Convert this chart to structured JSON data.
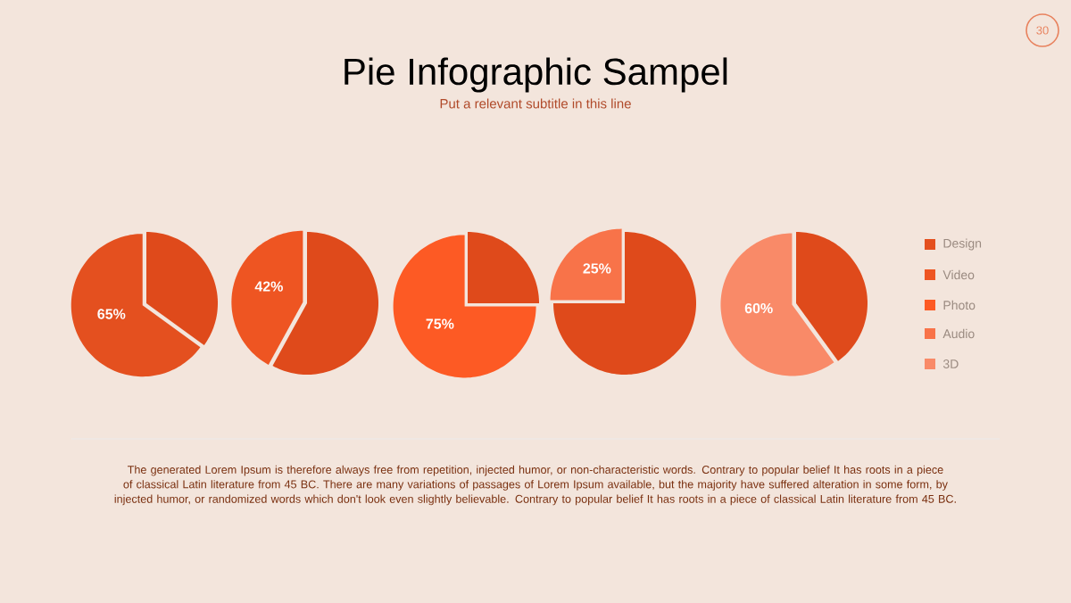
{
  "chart_data": [
    {
      "type": "pie",
      "categories": [
        "Design",
        null
      ],
      "values": [
        65,
        35
      ],
      "colors": [
        "#e4501f",
        "#df4a1b"
      ],
      "value_labels": [
        "65%",
        null
      ],
      "legend": "right"
    },
    {
      "type": "pie",
      "categories": [
        "Video",
        null
      ],
      "values": [
        42,
        58
      ],
      "colors": [
        "#ee5522",
        "#df4a1b"
      ],
      "value_labels": [
        "42%",
        null
      ],
      "legend": "right"
    },
    {
      "type": "pie",
      "title": "Pie Infographic Sampel",
      "subtitle": "Put a relevant subtitle in this line",
      "annotations": [
        "The generated Lorem Ipsum is therefore always free from repetition, injected humor, or non-characteristic words. Contrary to popular belief It has roots in a piece of classical Latin literature from 45 BC. There are many variations of passages of Lorem Ipsum available, but the majority have suffered alteration in some form, by injected humor, or randomized words which don't look even slightly believable. Contrary to popular belief It has roots in a piece of classical Latin literature from 45 BC.",
        "30"
      ],
      "categories": [
        "Photo",
        null
      ],
      "values": [
        75,
        25
      ],
      "colors": [
        "#fd5a24",
        "#df4a1b"
      ],
      "value_labels": [
        "75%",
        null
      ],
      "legend": "right"
    },
    {
      "type": "pie",
      "categories": [
        "Audio",
        null
      ],
      "values": [
        25,
        75
      ],
      "colors": [
        "#f87349",
        "#df4a1b"
      ],
      "value_labels": [
        "25%",
        null
      ],
      "legend": "right"
    },
    {
      "type": "pie",
      "categories": [
        "3D",
        null
      ],
      "values": [
        60,
        40
      ],
      "colors": [
        "#f98a68",
        "#df4a1b"
      ],
      "value_labels": [
        "60%",
        null
      ],
      "legend": "right"
    }
  ]
}
